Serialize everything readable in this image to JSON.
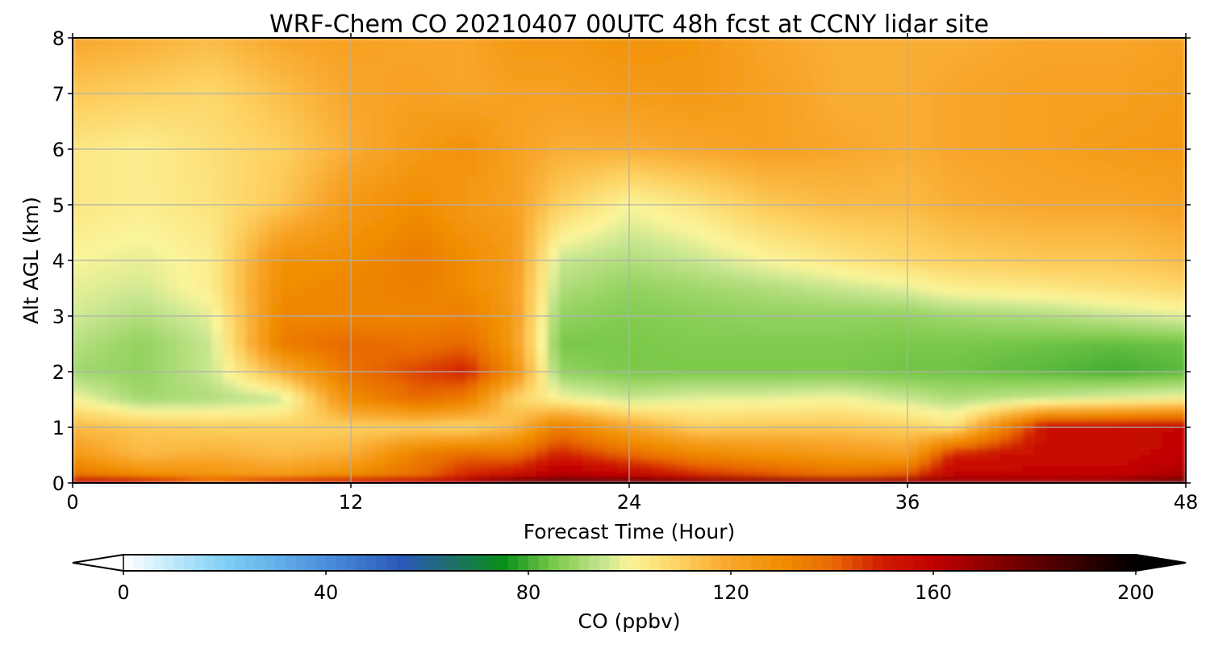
{
  "chart_data": {
    "type": "heatmap",
    "title": "WRF-Chem CO  20210407 00UTC 48h fcst at CCNY lidar site",
    "xlabel": "Forecast Time (Hour)",
    "ylabel": "Alt AGL (km)",
    "xlim": [
      0,
      48
    ],
    "ylim": [
      0,
      8
    ],
    "xticks": [
      0,
      12,
      24,
      36,
      48
    ],
    "yticks": [
      0,
      1,
      2,
      3,
      4,
      5,
      6,
      7,
      8
    ],
    "grid": true,
    "colorbar": {
      "label": "CO  (ppbv)",
      "min": 0,
      "max": 200,
      "ticks": [
        0,
        40,
        80,
        120,
        160,
        200
      ],
      "extend": "both",
      "stops": [
        {
          "value": 0,
          "color": "#ffffff"
        },
        {
          "value": 20,
          "color": "#7fd0f5"
        },
        {
          "value": 40,
          "color": "#4a8fdc"
        },
        {
          "value": 55,
          "color": "#2a58b8"
        },
        {
          "value": 65,
          "color": "#1e6e6a"
        },
        {
          "value": 75,
          "color": "#078f1a"
        },
        {
          "value": 85,
          "color": "#7bc94a"
        },
        {
          "value": 95,
          "color": "#c8e690"
        },
        {
          "value": 100,
          "color": "#fbf59a"
        },
        {
          "value": 110,
          "color": "#fdd060"
        },
        {
          "value": 120,
          "color": "#f8a52a"
        },
        {
          "value": 130,
          "color": "#f08d00"
        },
        {
          "value": 140,
          "color": "#e86a06"
        },
        {
          "value": 150,
          "color": "#cf1b00"
        },
        {
          "value": 160,
          "color": "#c00000"
        },
        {
          "value": 175,
          "color": "#7a0000"
        },
        {
          "value": 190,
          "color": "#300000"
        },
        {
          "value": 200,
          "color": "#000000"
        }
      ]
    },
    "grid_x": [
      0,
      3,
      6,
      9,
      12,
      15,
      17,
      19,
      21,
      24,
      27,
      30,
      33,
      36,
      38,
      42,
      45,
      48
    ],
    "grid_y": [
      0,
      0.1,
      0.5,
      1,
      1.5,
      2,
      2.5,
      3,
      3.5,
      4,
      5,
      6,
      7,
      8
    ],
    "values": [
      [
        175,
        165,
        150,
        165,
        165,
        175,
        175,
        190,
        190,
        190,
        190,
        190,
        190,
        188,
        175,
        170,
        175,
        190
      ],
      [
        140,
        132,
        128,
        125,
        132,
        140,
        150,
        155,
        165,
        160,
        150,
        145,
        140,
        145,
        160,
        160,
        160,
        165
      ],
      [
        125,
        115,
        118,
        115,
        118,
        135,
        140,
        138,
        150,
        140,
        132,
        128,
        125,
        122,
        150,
        155,
        155,
        160
      ],
      [
        115,
        112,
        110,
        110,
        110,
        110,
        108,
        115,
        135,
        120,
        110,
        112,
        112,
        110,
        105,
        155,
        155,
        158
      ],
      [
        100,
        90,
        92,
        95,
        130,
        140,
        135,
        110,
        100,
        95,
        98,
        98,
        100,
        95,
        92,
        95,
        98,
        100
      ],
      [
        90,
        88,
        95,
        118,
        138,
        145,
        150,
        130,
        88,
        85,
        85,
        85,
        85,
        84,
        84,
        82,
        80,
        82
      ],
      [
        93,
        88,
        95,
        135,
        140,
        138,
        140,
        125,
        85,
        85,
        86,
        86,
        86,
        85,
        85,
        84,
        83,
        84
      ],
      [
        96,
        92,
        98,
        132,
        132,
        132,
        134,
        125,
        88,
        86,
        87,
        88,
        88,
        88,
        90,
        92,
        95,
        98
      ],
      [
        98,
        96,
        102,
        130,
        132,
        134,
        130,
        124,
        92,
        88,
        90,
        92,
        95,
        98,
        102,
        104,
        106,
        108
      ],
      [
        100,
        98,
        102,
        128,
        130,
        135,
        130,
        125,
        95,
        92,
        95,
        100,
        104,
        108,
        110,
        112,
        112,
        115
      ],
      [
        104,
        102,
        105,
        112,
        125,
        130,
        125,
        122,
        110,
        100,
        105,
        112,
        115,
        115,
        118,
        120,
        120,
        122
      ],
      [
        104,
        102,
        106,
        110,
        118,
        125,
        128,
        122,
        118,
        118,
        120,
        122,
        120,
        118,
        120,
        122,
        124,
        125
      ],
      [
        112,
        110,
        108,
        114,
        120,
        122,
        120,
        122,
        122,
        124,
        125,
        122,
        118,
        118,
        120,
        122,
        122,
        124
      ],
      [
        120,
        118,
        115,
        120,
        122,
        120,
        120,
        125,
        125,
        128,
        126,
        120,
        118,
        118,
        118,
        120,
        120,
        122
      ]
    ]
  }
}
